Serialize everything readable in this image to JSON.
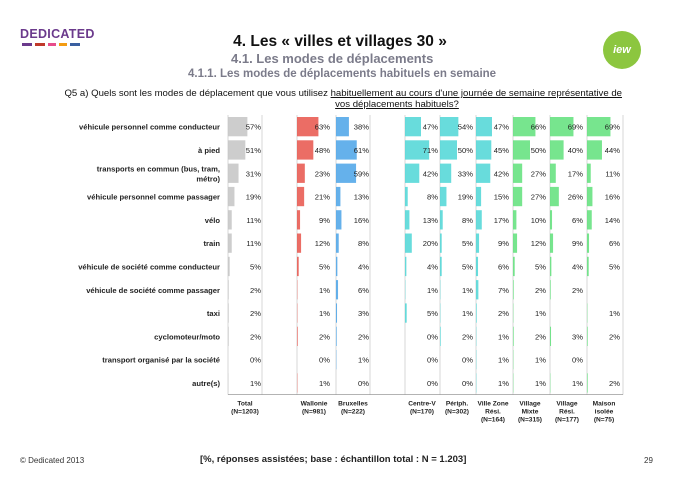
{
  "brand": {
    "name": "DEDICATED",
    "dash_colors": [
      "#6b3a8c",
      "#c0392b",
      "#e74c8c",
      "#f39c12",
      "#3a5fa0"
    ]
  },
  "badge": {
    "text": "iew",
    "color": "#8cc63f"
  },
  "header": {
    "title": "4. Les « villes et villages 30 »",
    "section": "4.1. Les modes de déplacements",
    "subsection": "4.1.1. Les modes de déplacements habituels en semaine"
  },
  "question": {
    "part1": "Q5 a) Quels sont les modes de déplacement que vous utilisez ",
    "part2": "habituellement au cours d'une journée de semaine représentative de",
    "line2": "vos déplacements habituels?"
  },
  "chart_data": {
    "type": "bar",
    "title": "Les modes de déplacements habituels en semaine",
    "value_suffix": "%",
    "categories": [
      [
        "véhicule personnel comme conducteur"
      ],
      [
        "à pied"
      ],
      [
        "transports en commun (bus, tram,",
        "métro)"
      ],
      [
        "véhicule personnel comme passager"
      ],
      [
        "vélo"
      ],
      [
        "train"
      ],
      [
        "véhicule de société comme conducteur"
      ],
      [
        "véhicule de société comme passager"
      ],
      [
        "taxi"
      ],
      [
        "cyclomoteur/moto"
      ],
      [
        "transport organisé par la société"
      ],
      [
        "autre(s)"
      ]
    ],
    "series": [
      {
        "name": "Total",
        "base": "(N=1203)",
        "color": "#c4c4c4",
        "values": [
          57,
          51,
          31,
          19,
          11,
          11,
          5,
          2,
          2,
          2,
          0,
          1
        ]
      },
      {
        "name": "Wallonie",
        "base": "(N=981)",
        "color": "#e8544a",
        "values": [
          63,
          48,
          23,
          21,
          9,
          12,
          5,
          1,
          1,
          2,
          0,
          1
        ]
      },
      {
        "name": "Bruxelles",
        "base": "(N=222)",
        "color": "#4aa3e8",
        "values": [
          38,
          61,
          59,
          13,
          16,
          8,
          4,
          6,
          3,
          2,
          1,
          0
        ]
      },
      {
        "name": "Centre-V",
        "base": "(N=170)",
        "color": "#4dd6d6",
        "values": [
          47,
          71,
          42,
          8,
          13,
          20,
          4,
          1,
          5,
          0,
          0,
          0
        ]
      },
      {
        "name": "Périph.",
        "base": "(N=302)",
        "color": "#4dd6d6",
        "values": [
          54,
          50,
          33,
          19,
          8,
          5,
          5,
          1,
          1,
          2,
          0,
          0
        ]
      },
      {
        "name": "Ville Zone Rési.",
        "base": "(N=164)",
        "color": "#4dd6d6",
        "values": [
          47,
          45,
          42,
          15,
          17,
          9,
          6,
          7,
          2,
          1,
          1,
          1
        ]
      },
      {
        "name": "Village Mixte",
        "base": "(N=315)",
        "color": "#5fe07a",
        "values": [
          66,
          50,
          27,
          27,
          10,
          12,
          5,
          2,
          1,
          2,
          1,
          1
        ]
      },
      {
        "name": "Village Rési.",
        "base": "(N=177)",
        "color": "#5fe07a",
        "values": [
          69,
          40,
          17,
          26,
          6,
          9,
          4,
          2,
          null,
          3,
          0,
          1
        ]
      },
      {
        "name": "Maison isolée",
        "base": "(N=75)",
        "color": "#5fe07a",
        "values": [
          69,
          44,
          11,
          16,
          14,
          6,
          5,
          null,
          1,
          2,
          null,
          2
        ]
      }
    ],
    "column_labels": [
      [
        "Total",
        "(N=1203)"
      ],
      [
        "Wallonie",
        "(N=981)"
      ],
      [
        "Bruxelles",
        "(N=222)"
      ],
      [
        "Centre-V",
        "(N=170)"
      ],
      [
        "Périph.",
        "(N=302)"
      ],
      [
        "Ville Zone",
        "Rési.",
        "(N=164)"
      ],
      [
        "Village",
        "Mixte",
        "(N=315)"
      ],
      [
        "Village",
        "Rési.",
        "(N=177)"
      ],
      [
        "Maison",
        "isolée",
        "(N=75)"
      ]
    ]
  },
  "footer": {
    "copyright": "© Dedicated 2013",
    "note": "[%, réponses assistées; base : échantillon total : N = 1.203]",
    "page": "29"
  }
}
